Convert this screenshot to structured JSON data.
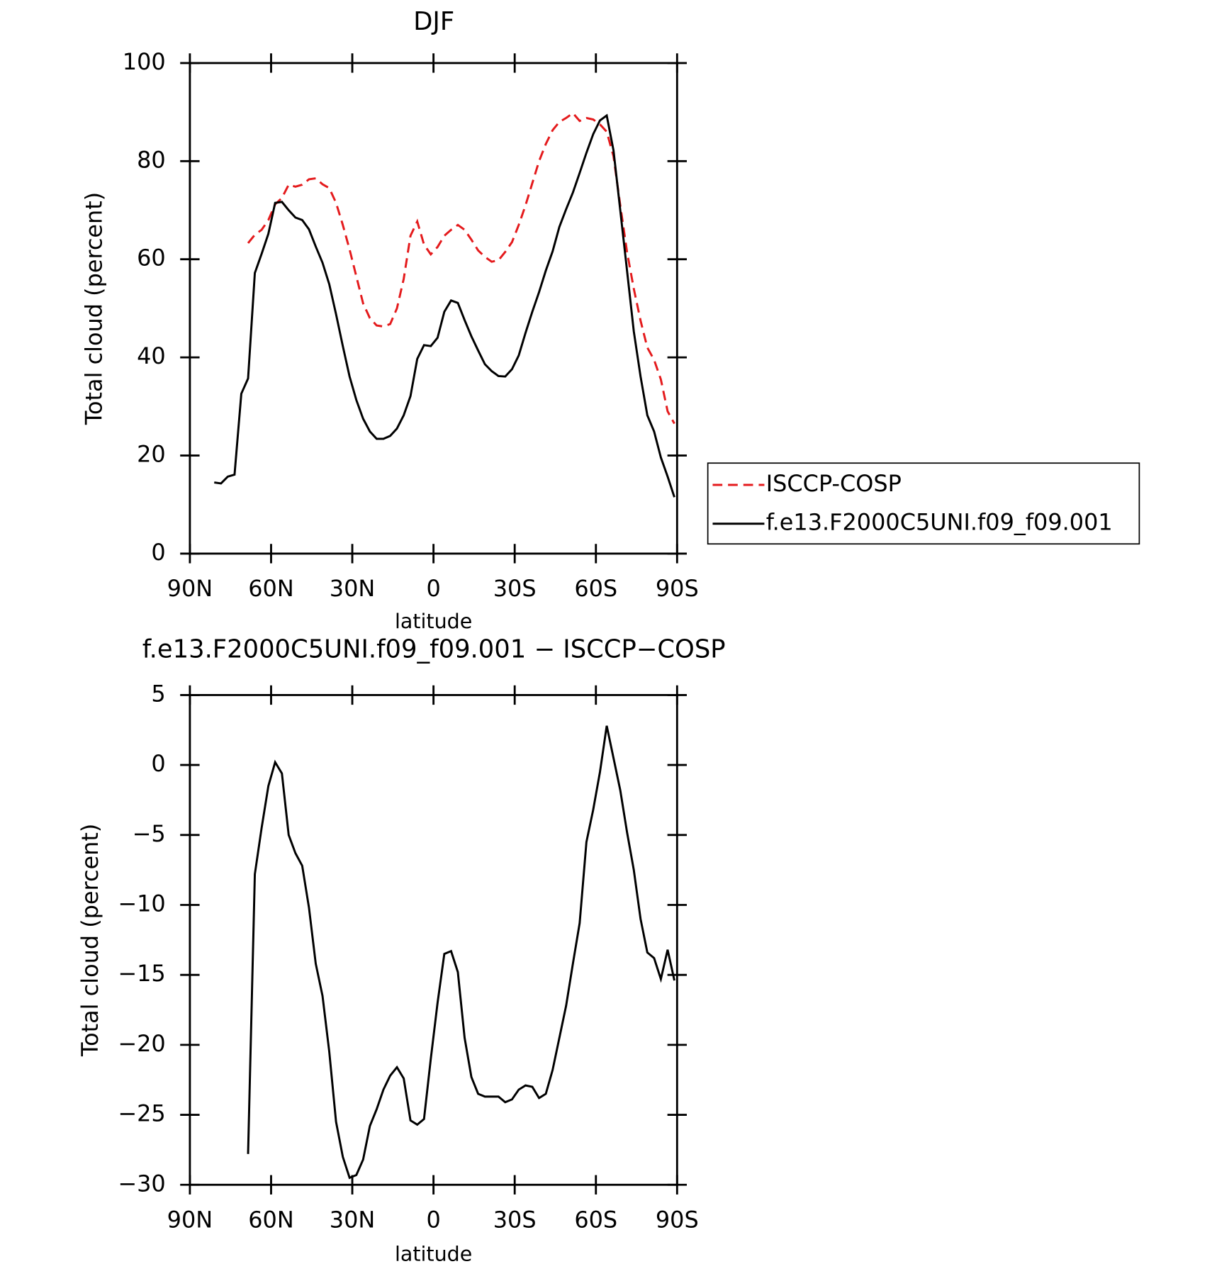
{
  "chart_data": [
    {
      "type": "line",
      "title": "DJF",
      "x_label": "latitude",
      "y_label": "Total cloud (percent)",
      "xlim": [
        90,
        -90
      ],
      "ylim": [
        0,
        100
      ],
      "xticks": [
        {
          "value": 90,
          "label": "90N"
        },
        {
          "value": 60,
          "label": "60N"
        },
        {
          "value": 30,
          "label": "30N"
        },
        0,
        {
          "value": -30,
          "label": "30S"
        },
        {
          "value": -60,
          "label": "60S"
        },
        {
          "value": -90,
          "label": "90S"
        }
      ],
      "yticks": [
        0,
        20,
        40,
        60,
        80,
        100
      ],
      "legend": "right",
      "x": [
        81,
        78.5,
        76,
        73.5,
        71,
        68.5,
        66,
        63.5,
        61,
        58.5,
        56,
        53.5,
        51,
        48.5,
        46,
        43.5,
        41,
        38.5,
        36,
        33.5,
        31,
        28.5,
        26,
        23.5,
        21,
        18.5,
        16,
        13.5,
        11,
        8.5,
        6,
        3.5,
        1,
        -1.5,
        -4,
        -6.5,
        -9,
        -11.5,
        -14,
        -16.5,
        -19,
        -21.5,
        -24,
        -26.5,
        -29,
        -31.5,
        -34,
        -36.5,
        -39,
        -41.5,
        -44,
        -46.5,
        -49,
        -51.5,
        -54,
        -56.5,
        -59,
        -61.5,
        -64,
        -66.5,
        -69,
        -71.5,
        -74,
        -76.5,
        -79,
        -81.5,
        -84,
        -86.5,
        -89
      ],
      "series": [
        {
          "name": "ISCCP-COSP",
          "color": "#e41a1c",
          "linestyle": "dashed",
          "values": [
            null,
            null,
            null,
            null,
            null,
            63.3,
            65,
            66,
            68,
            71.2,
            72.5,
            75.2,
            74.8,
            75.2,
            76.3,
            76.5,
            75.3,
            74.5,
            71.5,
            67,
            62,
            56.5,
            51,
            48,
            46.5,
            46.3,
            46.8,
            50,
            56,
            64.8,
            67.7,
            63,
            61,
            62.5,
            64.8,
            66,
            67,
            66,
            64,
            61.8,
            60.5,
            59.5,
            59.8,
            61.5,
            63.5,
            67,
            71,
            75.5,
            80,
            83.5,
            86.3,
            88,
            88.8,
            89.8,
            88.2,
            88.8,
            88.5,
            87.5,
            86,
            81,
            71,
            61.5,
            54,
            47.5,
            42,
            39.5,
            35.5,
            29,
            26.5
          ]
        },
        {
          "name": "f.e13.F2000C5UNI.f09_f09.001",
          "color": "#000000",
          "linestyle": "solid",
          "values": [
            14.5,
            14.3,
            15.7,
            16.1,
            32.6,
            35.7,
            57.2,
            61.1,
            65.2,
            71.5,
            71.7,
            70,
            68.5,
            68,
            66.1,
            62.6,
            59.3,
            54.9,
            48.8,
            42.3,
            36.1,
            31.3,
            27.5,
            24.9,
            23.4,
            23.4,
            24,
            25.5,
            28.2,
            32.1,
            39.7,
            42.5,
            42.3,
            44,
            49.3,
            51.6,
            51.1,
            47.6,
            44.3,
            41.4,
            38.6,
            37.2,
            36.2,
            36.1,
            37.6,
            40.4,
            45,
            49.3,
            53.3,
            57.7,
            61.6,
            66.6,
            70.2,
            73.6,
            77.6,
            81.7,
            85.5,
            88.3,
            89.3,
            82.2,
            70,
            57.7,
            45.3,
            36.1,
            28.2,
            24.9,
            19.6,
            15.7,
            11.5
          ]
        }
      ]
    },
    {
      "type": "line",
      "title": "f.e13.F2000C5UNI.f09_f09.001 − ISCCP−COSP",
      "x_label": "latitude",
      "y_label": "Total cloud (percent)",
      "xlim": [
        90,
        -90
      ],
      "ylim": [
        -30,
        5
      ],
      "xticks": [
        {
          "value": 90,
          "label": "90N"
        },
        {
          "value": 60,
          "label": "60N"
        },
        {
          "value": 30,
          "label": "30N"
        },
        0,
        {
          "value": -30,
          "label": "30S"
        },
        {
          "value": -60,
          "label": "60S"
        },
        {
          "value": -90,
          "label": "90S"
        }
      ],
      "yticks": [
        {
          "value": -30,
          "label": "−30"
        },
        {
          "value": -25,
          "label": "−25"
        },
        {
          "value": -20,
          "label": "−20"
        },
        {
          "value": -15,
          "label": "−15"
        },
        {
          "value": -10,
          "label": "−10"
        },
        {
          "value": -5,
          "label": "−5"
        },
        0,
        5
      ],
      "x": [
        68.5,
        66,
        63.5,
        61,
        58.5,
        56,
        53.5,
        51,
        48.5,
        46,
        43.5,
        41,
        38.5,
        36,
        33.5,
        31,
        28.5,
        26,
        23.5,
        21,
        18.5,
        16,
        13.5,
        11,
        8.5,
        6,
        3.5,
        1,
        -1.5,
        -4,
        -6.5,
        -9,
        -11.5,
        -14,
        -16.5,
        -19,
        -21.5,
        -24,
        -26.5,
        -29,
        -31.5,
        -34,
        -36.5,
        -39,
        -41.5,
        -44,
        -46.5,
        -49,
        -51.5,
        -54,
        -56.5,
        -59,
        -61.5,
        -64,
        -66.5,
        -69,
        -71.5,
        -74,
        -76.5,
        -79,
        -81.5,
        -84,
        -86.5,
        -89
      ],
      "series": [
        {
          "color": "#000000",
          "linestyle": "solid",
          "values": [
            -27.8,
            -7.8,
            -4.5,
            -1.5,
            0.2,
            -0.6,
            -5,
            -6.3,
            -7.2,
            -10.2,
            -14.2,
            -16.5,
            -20.5,
            -25.5,
            -28,
            -29.5,
            -29.3,
            -28.2,
            -25.8,
            -24.6,
            -23.2,
            -22.2,
            -21.6,
            -22.4,
            -25.4,
            -25.7,
            -25.3,
            -21,
            -17,
            -13.5,
            -13.3,
            -14.8,
            -19.5,
            -22.3,
            -23.5,
            -23.7,
            -23.7,
            -23.7,
            -24.1,
            -23.9,
            -23.2,
            -22.9,
            -23,
            -23.8,
            -23.5,
            -21.8,
            -19.5,
            -17.2,
            -14.2,
            -11.3,
            -5.5,
            -3.2,
            -0.5,
            2.8,
            0.5,
            -1.8,
            -4.8,
            -7.5,
            -11,
            -13.4,
            -13.8,
            -15.3,
            -13.2,
            -15.4
          ]
        }
      ]
    }
  ]
}
